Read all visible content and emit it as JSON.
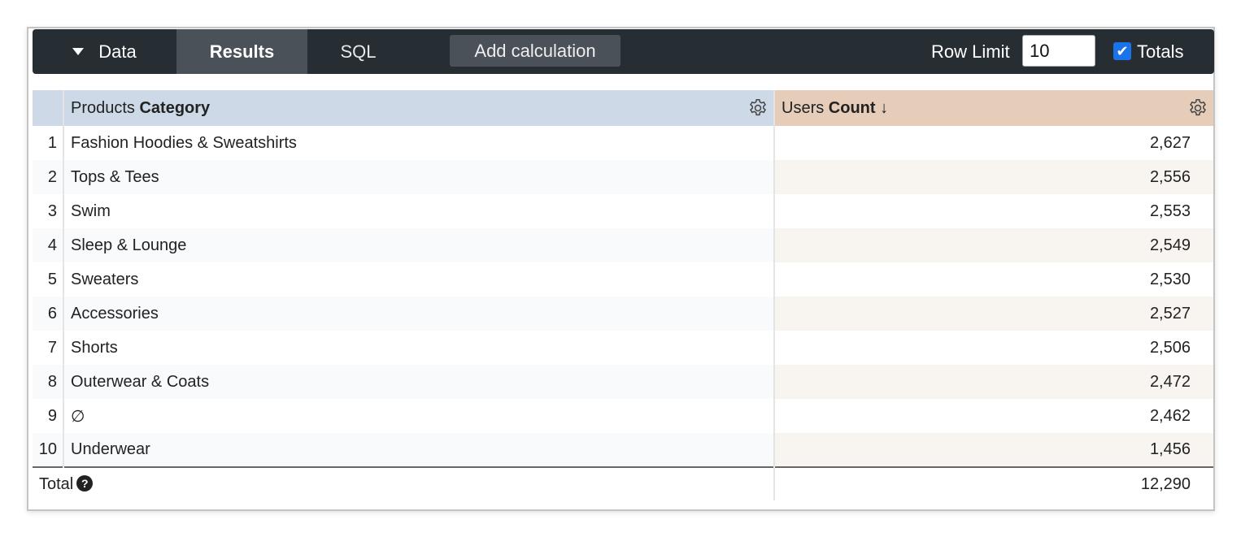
{
  "toolbar": {
    "data_label": "Data",
    "tabs": [
      "Results",
      "SQL"
    ],
    "add_calculation": "Add calculation",
    "row_limit_label": "Row Limit",
    "row_limit_value": "10",
    "totals_label": "Totals",
    "totals_checked": true
  },
  "table": {
    "headers": {
      "category_prefix": "Products ",
      "category_bold": "Category",
      "count_prefix": "Users ",
      "count_bold": "Count",
      "sort_indicator": "↓"
    },
    "rows": [
      {
        "index": "1",
        "category": "Fashion Hoodies & Sweatshirts",
        "count": "2,627"
      },
      {
        "index": "2",
        "category": "Tops & Tees",
        "count": "2,556"
      },
      {
        "index": "3",
        "category": "Swim",
        "count": "2,553"
      },
      {
        "index": "4",
        "category": "Sleep & Lounge",
        "count": "2,549"
      },
      {
        "index": "5",
        "category": "Sweaters",
        "count": "2,530"
      },
      {
        "index": "6",
        "category": "Accessories",
        "count": "2,527"
      },
      {
        "index": "7",
        "category": "Shorts",
        "count": "2,506"
      },
      {
        "index": "8",
        "category": "Outerwear & Coats",
        "count": "2,472"
      },
      {
        "index": "9",
        "category": "∅",
        "count": "2,462"
      },
      {
        "index": "10",
        "category": "Underwear",
        "count": "1,456"
      }
    ],
    "total": {
      "label": "Total",
      "help_icon": "?",
      "count": "12,290"
    }
  },
  "colors": {
    "toolbar": "#262d33",
    "dimension_header": "#cdd9e6",
    "measure_header": "#e6cdb9",
    "checkbox": "#1a73e8"
  }
}
